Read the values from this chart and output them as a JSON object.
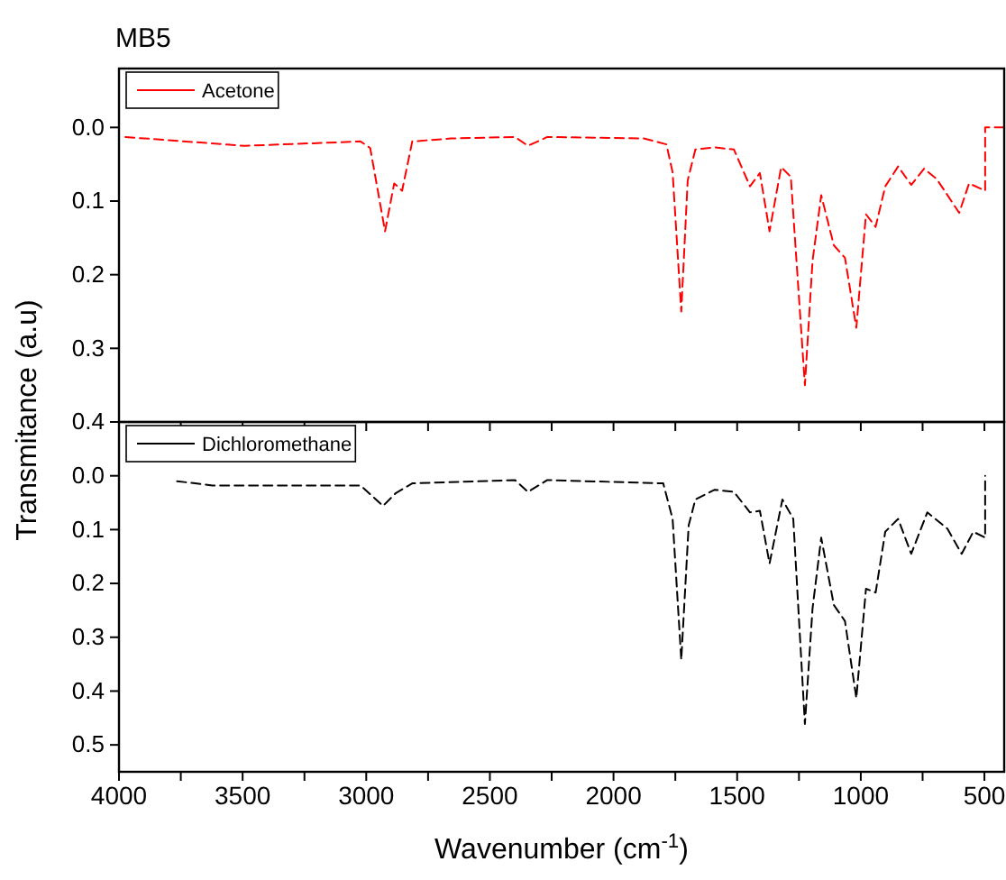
{
  "chart_data": [
    {
      "type": "line",
      "title": "MB5",
      "ylabel": "Transmitance (a.u)",
      "legend": "top left",
      "line_style": "dashed",
      "tick_labels": "y",
      "xlim": [
        4000,
        420
      ],
      "ylim": [
        0.4,
        -0.08
      ],
      "xticks": [
        {
          "value": 4000,
          "label": null
        },
        {
          "value": 3750,
          "label": null
        },
        {
          "value": 3500,
          "label": null
        },
        {
          "value": 3250,
          "label": null
        },
        {
          "value": 3000,
          "label": null
        },
        {
          "value": 2750,
          "label": null
        },
        {
          "value": 2500,
          "label": null
        },
        {
          "value": 2250,
          "label": null
        },
        {
          "value": 2000,
          "label": null
        },
        {
          "value": 1750,
          "label": null
        },
        {
          "value": 1500,
          "label": null
        },
        {
          "value": 1250,
          "label": null
        },
        {
          "value": 1000,
          "label": null
        },
        {
          "value": 750,
          "label": null
        },
        {
          "value": 500,
          "label": null
        }
      ],
      "yticks": [
        {
          "value": 0,
          "label": "0.0"
        },
        {
          "value": 0.1,
          "label": "0.1"
        },
        {
          "value": 0.2,
          "label": "0.2"
        },
        {
          "value": 0.3,
          "label": "0.3"
        },
        {
          "value": 0.4,
          "label": "0.4"
        }
      ],
      "series": [
        {
          "name": "Acetone",
          "color": "#ff0000",
          "x": [
            3974,
            3492,
            3023,
            2984,
            2924,
            2887,
            2855,
            2814,
            2658,
            2398,
            2346,
            2268,
            1878,
            1786,
            1761,
            1726,
            1700,
            1669,
            1591,
            1513,
            1448,
            1408,
            1369,
            1322,
            1283,
            1226,
            1195,
            1160,
            1109,
            1064,
            1018,
            979,
            940,
            901,
            849,
            796,
            744,
            693,
            602,
            562,
            497,
            497,
            420
          ],
          "values": [
            0.013,
            0.025,
            0.019,
            0.028,
            0.141,
            0.076,
            0.086,
            0.019,
            0.015,
            0.013,
            0.025,
            0.013,
            0.015,
            0.023,
            0.061,
            0.25,
            0.072,
            0.03,
            0.027,
            0.03,
            0.08,
            0.062,
            0.141,
            0.054,
            0.067,
            0.35,
            0.181,
            0.092,
            0.16,
            0.177,
            0.272,
            0.118,
            0.135,
            0.08,
            0.053,
            0.078,
            0.056,
            0.07,
            0.116,
            0.076,
            0.086,
            0.0,
            0.0
          ]
        }
      ]
    },
    {
      "type": "line",
      "xlabel": "Wavenumber (cm$^{-1}$)",
      "legend": "top left",
      "line_style": "dashed",
      "xlim": [
        4000,
        420
      ],
      "ylim": [
        0.55,
        -0.1
      ],
      "xticks": [
        4000,
        {
          "value": 3750,
          "label": null
        },
        3500,
        {
          "value": 3250,
          "label": null
        },
        3000,
        {
          "value": 2750,
          "label": null
        },
        2500,
        {
          "value": 2250,
          "label": null
        },
        2000,
        {
          "value": 1750,
          "label": null
        },
        1500,
        {
          "value": 1250,
          "label": null
        },
        1000,
        {
          "value": 750,
          "label": null
        },
        500
      ],
      "yticks": [
        {
          "value": 0,
          "label": "0.0"
        },
        {
          "value": 0.1,
          "label": "0.1"
        },
        {
          "value": 0.2,
          "label": "0.2"
        },
        {
          "value": 0.3,
          "label": "0.3"
        },
        {
          "value": 0.4,
          "label": "0.4"
        },
        {
          "value": 0.5,
          "label": "0.5"
        }
      ],
      "series": [
        {
          "name": "Dichloromethane",
          "color": "#000000",
          "x": [
            3765,
            3622,
            3023,
            2932,
            2880,
            2814,
            2398,
            2346,
            2268,
            1799,
            1761,
            1726,
            1696,
            1669,
            1591,
            1513,
            1448,
            1408,
            1369,
            1317,
            1273,
            1226,
            1195,
            1160,
            1109,
            1064,
            1018,
            979,
            940,
            901,
            849,
            796,
            731,
            650,
            592,
            545,
            497,
            497
          ],
          "values": [
            0.01,
            0.018,
            0.018,
            0.056,
            0.032,
            0.014,
            0.008,
            0.03,
            0.008,
            0.014,
            0.08,
            0.342,
            0.092,
            0.044,
            0.026,
            0.03,
            0.068,
            0.065,
            0.163,
            0.044,
            0.08,
            0.461,
            0.246,
            0.115,
            0.24,
            0.27,
            0.413,
            0.21,
            0.217,
            0.104,
            0.08,
            0.145,
            0.068,
            0.098,
            0.145,
            0.104,
            0.115,
            0.0
          ]
        }
      ]
    }
  ]
}
